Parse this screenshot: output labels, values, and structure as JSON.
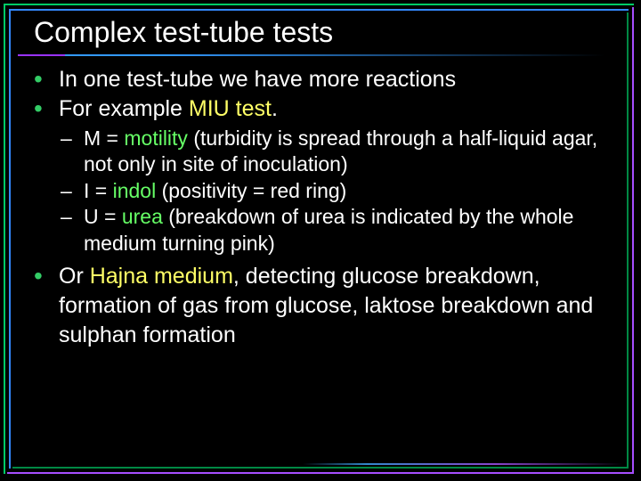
{
  "title": "Complex test-tube tests",
  "colors": {
    "background": "#000000",
    "text": "#ffffff",
    "bullet_main": "#33cc66",
    "highlight_yellow": "#ffff66",
    "highlight_green": "#66ff66",
    "border_green": "#00cc66",
    "border_blue": "#3388ff",
    "border_purple": "#a64dff"
  },
  "typography": {
    "title_fontsize": 32,
    "main_fontsize": 25,
    "sub_fontsize": 23,
    "font_family": "Verdana"
  },
  "bullets": {
    "b1": "In one test-tube we have more reactions",
    "b2_prefix": "For example ",
    "b2_hl": "MIU test",
    "b2_suffix": ".",
    "sub1_dash": "M = ",
    "sub1_hl": "motility",
    "sub1_rest": " (turbidity is spread through a half-liquid agar, not only in site of inoculation)",
    "sub2_dash": "I = ",
    "sub2_hl": "indol",
    "sub2_rest": " (positivity = red ring)",
    "sub3_dash": "U = ",
    "sub3_hl": "urea",
    "sub3_rest": " (breakdown of urea is indicated by the whole medium turning pink)",
    "b3_prefix": "Or ",
    "b3_hl": "Hajna medium",
    "b3_rest": ", detecting glucose breakdown, formation of gas from glucose, laktose breakdown and sulphan formation"
  }
}
